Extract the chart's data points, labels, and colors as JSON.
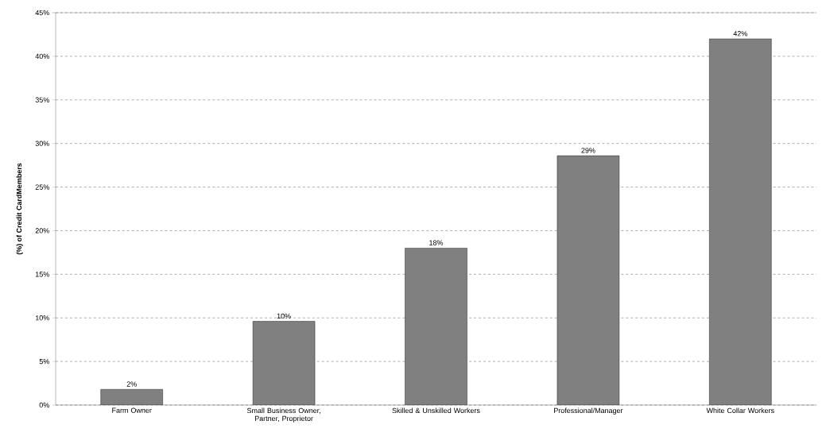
{
  "chart_data": {
    "type": "bar",
    "ylabel": "(%) of Credit CardMembers",
    "categories": [
      "Farm Owner",
      "Small Business Owner, Partner, Proprietor",
      "Skilled & Unskilled Workers",
      "Professional/Manager",
      "White Collar Workers"
    ],
    "values": [
      1.8,
      9.6,
      18,
      28.6,
      42
    ],
    "value_labels": [
      "2%",
      "10%",
      "18%",
      "29%",
      "42%"
    ],
    "color": "#808080",
    "ylim": [
      0,
      45
    ],
    "yticks": [
      {
        "value": 0,
        "label": "0%"
      },
      {
        "value": 5,
        "label": "5%"
      },
      {
        "value": 10,
        "label": "10%"
      },
      {
        "value": 15,
        "label": "15%"
      },
      {
        "value": 20,
        "label": "20%"
      },
      {
        "value": 25,
        "label": "25%"
      },
      {
        "value": 30,
        "label": "30%"
      },
      {
        "value": 35,
        "label": "35%"
      },
      {
        "value": 40,
        "label": "40%"
      },
      {
        "value": 45,
        "label": "45%"
      }
    ],
    "grid": "y"
  }
}
